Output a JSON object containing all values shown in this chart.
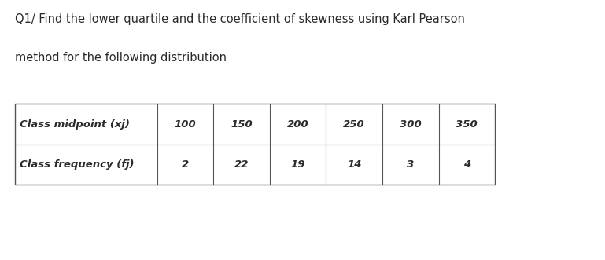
{
  "title_line1": "Q1/ Find the lower quartile and the coefficient of skewness using Karl Pearson",
  "title_line2": "method for the following distribution",
  "row1_header": "Class midpoint (xj)",
  "row2_header": "Class frequency (fj)",
  "col_values": [
    "100",
    "150",
    "200",
    "250",
    "300",
    "350"
  ],
  "freq_values": [
    "2",
    "22",
    "19",
    "14",
    "3",
    "4"
  ],
  "bg_color": "#ffffff",
  "table_bg": "#ffffff",
  "text_color": "#2a2a2a",
  "title_fontsize": 10.5,
  "table_header_fontsize": 9.5,
  "table_data_fontsize": 9.5
}
